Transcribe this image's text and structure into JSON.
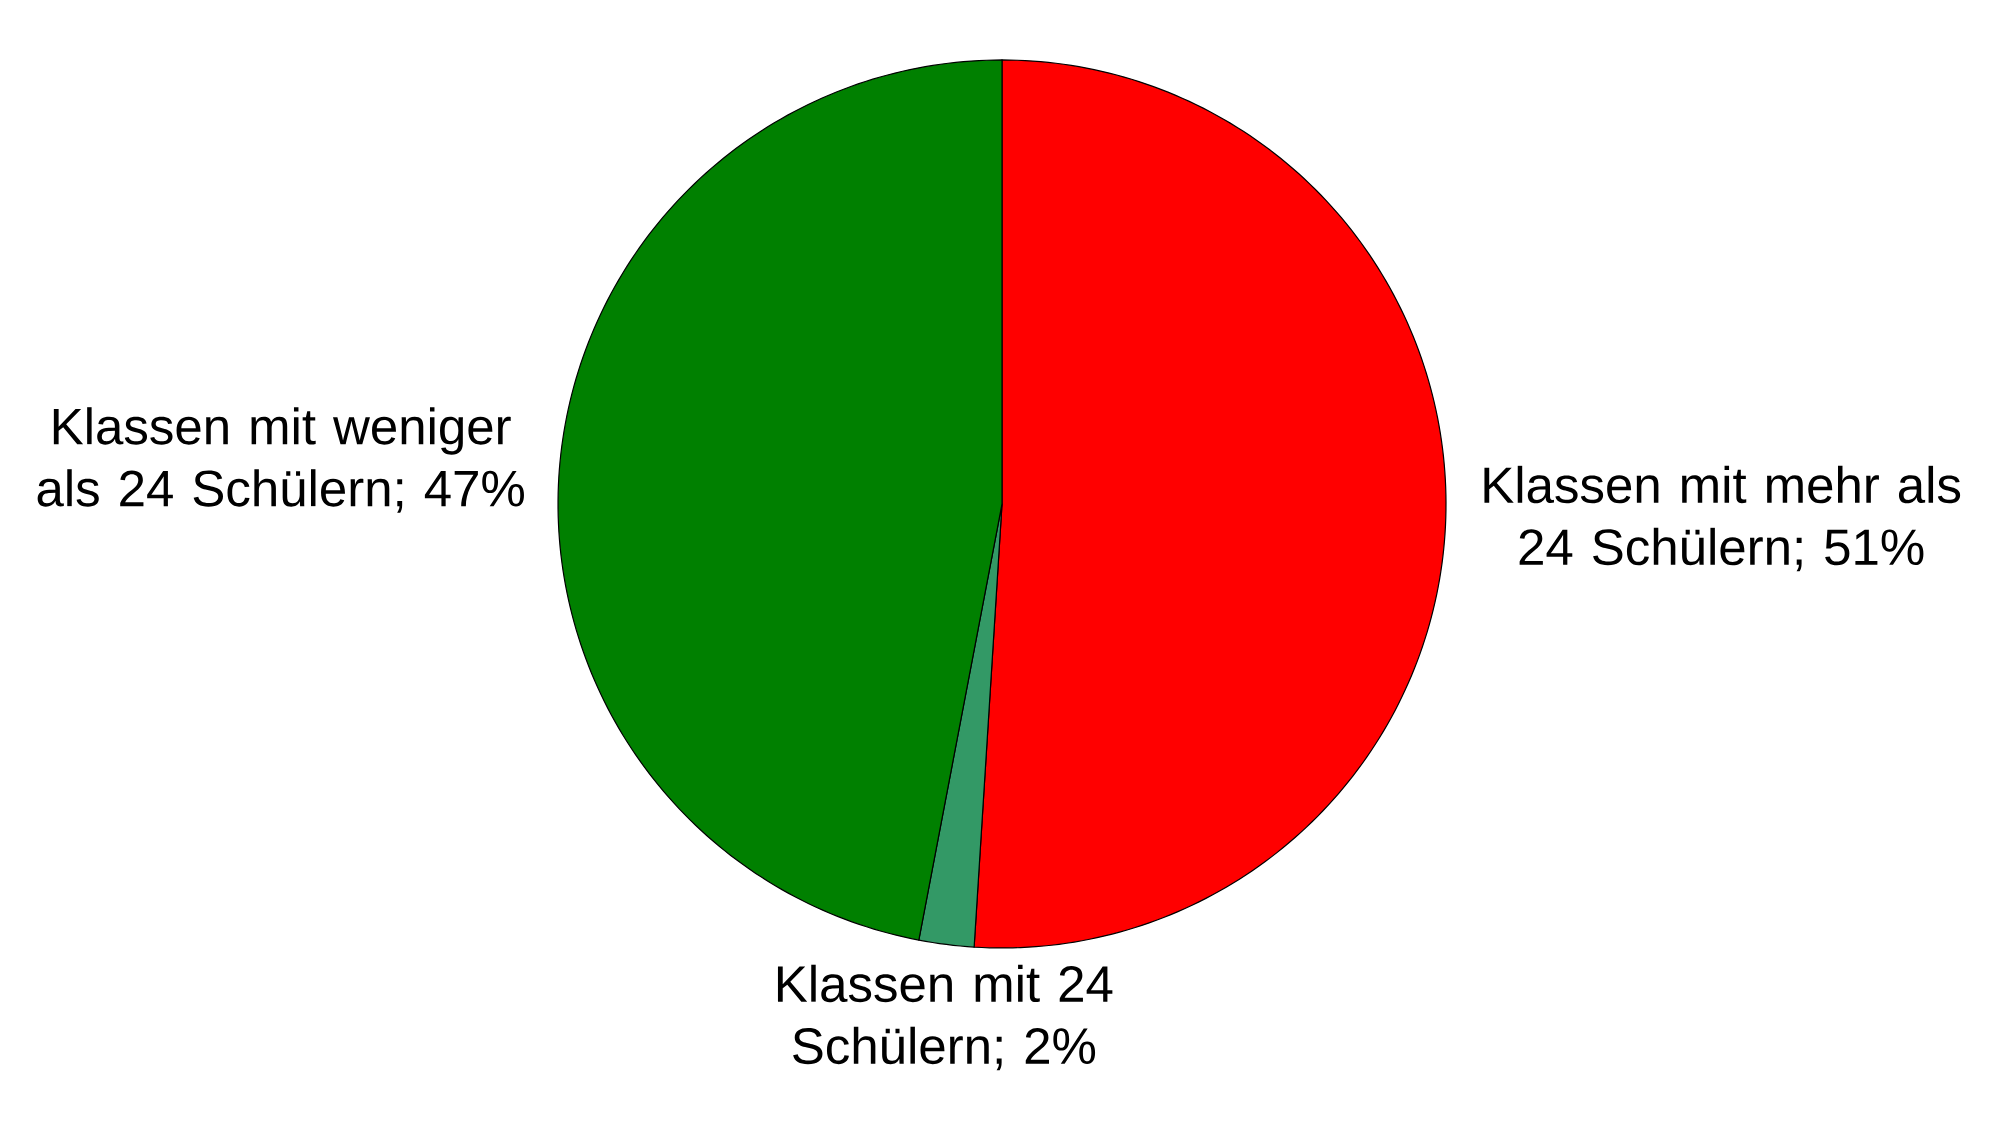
{
  "chart_data": {
    "type": "pie",
    "categories": [
      "Klassen mit mehr als 24 Schülern; 51%",
      "Klassen mit 24 Schülern; 2%",
      "Klassen mit weniger als 24 Schülern; 47%"
    ],
    "values": [
      51,
      2,
      47
    ],
    "colors": [
      "#ff0000",
      "#339966",
      "#008000"
    ]
  }
}
